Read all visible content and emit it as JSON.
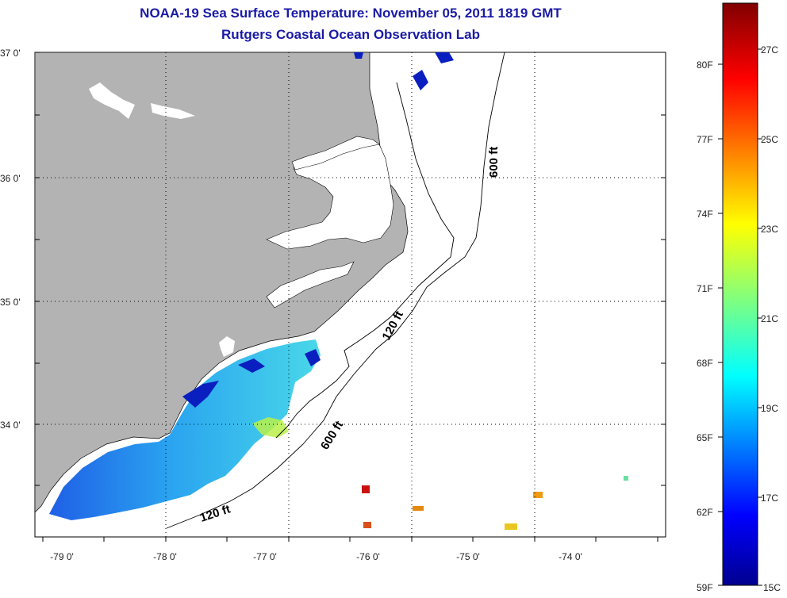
{
  "title_line1": "NOAA-19 Sea Surface Temperature:  November 05, 2011 1819 GMT",
  "title_line2": "Rutgers Coastal Ocean Observation Lab",
  "map": {
    "lat_labels": [
      "37 0'",
      "36 0'",
      "35 0'",
      "34 0'"
    ],
    "lon_labels": [
      "-79 0'",
      "-78 0'",
      "-77 0'",
      "-76 0'",
      "-75 0'",
      "-74 0'"
    ],
    "isobath_labels": [
      "600 ft",
      "120 ft",
      "600 ft",
      "120 ft"
    ]
  },
  "colorbar": {
    "fahrenheit_labels": [
      "80F",
      "77F",
      "74F",
      "71F",
      "68F",
      "65F",
      "62F",
      "59F"
    ],
    "celsius_labels": [
      "27C",
      "25C",
      "23C",
      "21C",
      "19C",
      "17C",
      "15C"
    ],
    "range_f": [
      59,
      82
    ],
    "range_c": [
      15,
      28
    ],
    "colormap": "jet"
  },
  "colors": {
    "land": "#b3b3b3",
    "ocean_nodata": "#ffffff",
    "title": "#1a1aa6",
    "gridline": "#000000"
  }
}
